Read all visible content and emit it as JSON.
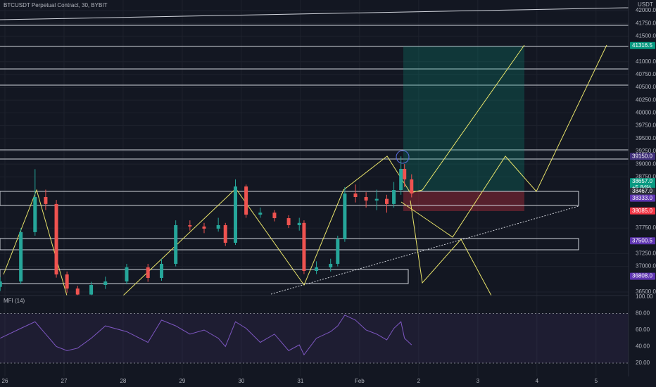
{
  "chart_data": [
    {
      "type": "candlestick",
      "title": "BTCUSDT Perpetual Contract, 30, BYBIT",
      "axis_unit": "USDT",
      "up_color": "#26a69a",
      "down_color": "#ef5350",
      "grid": true,
      "x": [
        -0.08,
        0.27,
        0.51,
        0.69,
        0.87,
        1.05,
        1.23,
        1.46,
        1.7,
        2.06,
        2.42,
        2.65,
        2.89,
        3.13,
        3.37,
        3.61,
        3.73,
        3.9,
        4.08,
        4.32,
        4.56,
        4.8,
        4.98,
        5.06,
        5.27,
        5.51,
        5.63,
        5.75,
        5.93,
        6.11,
        6.29,
        6.46,
        6.58,
        6.7,
        6.76,
        6.88
      ],
      "open": [
        36600,
        36706,
        37670,
        38356,
        38220,
        36843,
        36568,
        36450,
        36637,
        36706,
        36981,
        36775,
        37050,
        37806,
        37780,
        37738,
        37806,
        37462,
        38562,
        38012,
        38050,
        37943,
        37806,
        37850,
        36912,
        36981,
        37050,
        37531,
        38425,
        38356,
        38287,
        38320,
        38220,
        38493,
        38906,
        38700
      ],
      "high": [
        36790,
        37750,
        38900,
        38500,
        38300,
        36900,
        36620,
        36700,
        36800,
        37050,
        37050,
        37150,
        37900,
        37900,
        37850,
        37950,
        37850,
        38700,
        38600,
        38150,
        38100,
        38000,
        37950,
        37900,
        37100,
        37150,
        37600,
        38550,
        38600,
        38450,
        38500,
        38400,
        38650,
        39150,
        39000,
        38800
      ],
      "low": [
        36520,
        36650,
        37600,
        38100,
        36780,
        36480,
        36440,
        36440,
        36560,
        36650,
        36700,
        36720,
        37000,
        37700,
        37650,
        37680,
        37400,
        37420,
        37950,
        37950,
        37880,
        37750,
        37700,
        36850,
        36850,
        36900,
        37000,
        37480,
        38250,
        38150,
        38100,
        38050,
        38150,
        38400,
        38550,
        38350
      ],
      "close": [
        36706,
        37670,
        38356,
        38220,
        36843,
        36568,
        36450,
        36637,
        36706,
        36981,
        36775,
        37050,
        37806,
        37780,
        37738,
        37806,
        37462,
        38562,
        38012,
        38050,
        37943,
        37806,
        37850,
        36912,
        36981,
        37050,
        37531,
        38425,
        38356,
        38287,
        38320,
        38220,
        38493,
        38906,
        38700,
        38425
      ],
      "xlim": [
        -0.083,
        10.55
      ],
      "ylim": [
        36431,
        42206
      ],
      "xticks": [
        {
          "value": 0,
          "label": "26"
        },
        {
          "value": 1,
          "label": "27"
        },
        {
          "value": 2,
          "label": "28"
        },
        {
          "value": 3,
          "label": "29"
        },
        {
          "value": 4,
          "label": "30"
        },
        {
          "value": 5,
          "label": "31"
        },
        {
          "value": 6,
          "label": "Feb"
        },
        {
          "value": 7,
          "label": "2"
        },
        {
          "value": 8,
          "label": "3"
        },
        {
          "value": 9,
          "label": "4"
        },
        {
          "value": 10,
          "label": "5"
        }
      ],
      "yticks": [
        {
          "value": 36500,
          "label": "36500.0"
        },
        {
          "value": 37000,
          "label": "37000.0"
        },
        {
          "value": 37250,
          "label": "37250.0"
        },
        {
          "value": 37750,
          "label": "37750.0"
        },
        {
          "value": 38750,
          "label": "38750.0"
        },
        {
          "value": 39000,
          "label": "39000.0"
        },
        {
          "value": 39250,
          "label": "39250.0"
        },
        {
          "value": 39500,
          "label": "39500.0"
        },
        {
          "value": 39750,
          "label": "39750.0"
        },
        {
          "value": 40000,
          "label": "40000.0"
        },
        {
          "value": 40250,
          "label": "40250.0"
        },
        {
          "value": 40500,
          "label": "40500.0"
        },
        {
          "value": 40750,
          "label": "40750.0"
        },
        {
          "value": 41000,
          "label": "41000.0"
        },
        {
          "value": 41500,
          "label": "41500.0"
        },
        {
          "value": 41750,
          "label": "41750.0"
        },
        {
          "value": 42000,
          "label": "42000.0"
        }
      ],
      "price_tags": [
        {
          "value": 41316.5,
          "label": "41316.5",
          "color": "#089981"
        },
        {
          "value": 39150,
          "label": "39150.0",
          "color": "#3f2f7a"
        },
        {
          "value": 38657,
          "label": "38657.0",
          "sub": "+5.84%",
          "color": "#089981"
        },
        {
          "value": 38467,
          "label": "38467.0",
          "color": "#2a2e39"
        },
        {
          "value": 38333,
          "label": "38333.0",
          "color": "#5e35b1"
        },
        {
          "value": 38085,
          "label": "38085.0",
          "color": "#f23645"
        },
        {
          "value": 37500.5,
          "label": "37500.5",
          "color": "#5e35b1"
        },
        {
          "value": 36808,
          "label": "36808.0",
          "color": "#5e35b1"
        }
      ]
    },
    {
      "type": "line",
      "title": "MFI (14)",
      "color": "#7e57c2",
      "x": [
        -0.08,
        0.27,
        0.51,
        0.69,
        0.87,
        1.05,
        1.23,
        1.46,
        1.7,
        2.06,
        2.42,
        2.65,
        2.89,
        3.13,
        3.37,
        3.61,
        3.73,
        3.9,
        4.08,
        4.32,
        4.56,
        4.8,
        4.98,
        5.06,
        5.27,
        5.51,
        5.63,
        5.75,
        5.93,
        6.11,
        6.29,
        6.46,
        6.58,
        6.7,
        6.76,
        6.88
      ],
      "values": [
        50,
        62,
        70,
        55,
        40,
        35,
        38,
        50,
        65,
        58,
        45,
        72,
        65,
        55,
        60,
        50,
        40,
        70,
        62,
        45,
        55,
        35,
        42,
        30,
        50,
        58,
        65,
        78,
        72,
        60,
        55,
        48,
        62,
        70,
        50,
        42
      ],
      "ylim": [
        3.8,
        101.7
      ],
      "band": [
        20,
        80
      ],
      "yticks": [
        {
          "value": 20,
          "label": "20.00"
        },
        {
          "value": 40,
          "label": "40.00"
        },
        {
          "value": 60,
          "label": "60.00"
        },
        {
          "value": 80,
          "label": "80.00"
        },
        {
          "value": 100,
          "label": "100.00"
        }
      ]
    }
  ]
}
